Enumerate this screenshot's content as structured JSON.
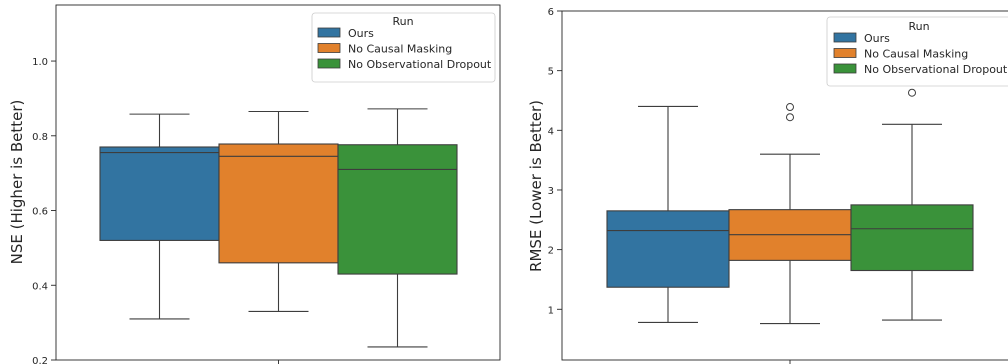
{
  "chart_data": [
    {
      "type": "box",
      "ylabel": "NSE (Higher is Better)",
      "yticks": [
        "0.2",
        "0.4",
        "0.6",
        "0.8",
        "1.0"
      ],
      "yticks_values": [
        0.2,
        0.4,
        0.6,
        0.8,
        1.0
      ],
      "ylim": [
        0.2,
        1.15
      ],
      "legend": {
        "title": "Run",
        "placement": "top-right",
        "entries": [
          "Ours",
          "No Causal Masking",
          "No Observational Dropout"
        ]
      },
      "series": [
        {
          "name": "Ours",
          "color": "#3274a1",
          "whisker_low": 0.31,
          "q1": 0.52,
          "median": 0.755,
          "q3": 0.77,
          "whisker_high": 0.858,
          "outliers": []
        },
        {
          "name": "No Causal Masking",
          "color": "#e1812c",
          "whisker_low": 0.33,
          "q1": 0.46,
          "median": 0.745,
          "q3": 0.778,
          "whisker_high": 0.865,
          "outliers": []
        },
        {
          "name": "No Observational Dropout",
          "color": "#3a923a",
          "whisker_low": 0.235,
          "q1": 0.43,
          "median": 0.71,
          "q3": 0.776,
          "whisker_high": 0.872,
          "outliers": []
        }
      ]
    },
    {
      "type": "box",
      "ylabel": "RMSE (Lower is Better)",
      "yticks": [
        "1",
        "2",
        "3",
        "4",
        "5",
        "6"
      ],
      "yticks_values": [
        1,
        2,
        3,
        4,
        5,
        6
      ],
      "ylim": [
        0.15,
        6.0
      ],
      "legend": {
        "title": "Run",
        "placement": "top-right",
        "entries": [
          "Ours",
          "No Causal Masking",
          "No Observational Dropout"
        ]
      },
      "series": [
        {
          "name": "Ours",
          "color": "#3274a1",
          "whisker_low": 0.78,
          "q1": 1.37,
          "median": 2.32,
          "q3": 2.65,
          "whisker_high": 4.4,
          "outliers": []
        },
        {
          "name": "No Causal Masking",
          "color": "#e1812c",
          "whisker_low": 0.76,
          "q1": 1.82,
          "median": 2.25,
          "q3": 2.67,
          "whisker_high": 3.6,
          "outliers": [
            4.22,
            4.39
          ]
        },
        {
          "name": "No Observational Dropout",
          "color": "#3a923a",
          "whisker_low": 0.82,
          "q1": 1.65,
          "median": 2.35,
          "q3": 2.75,
          "whisker_high": 4.1,
          "outliers": [
            4.63
          ]
        }
      ]
    }
  ]
}
